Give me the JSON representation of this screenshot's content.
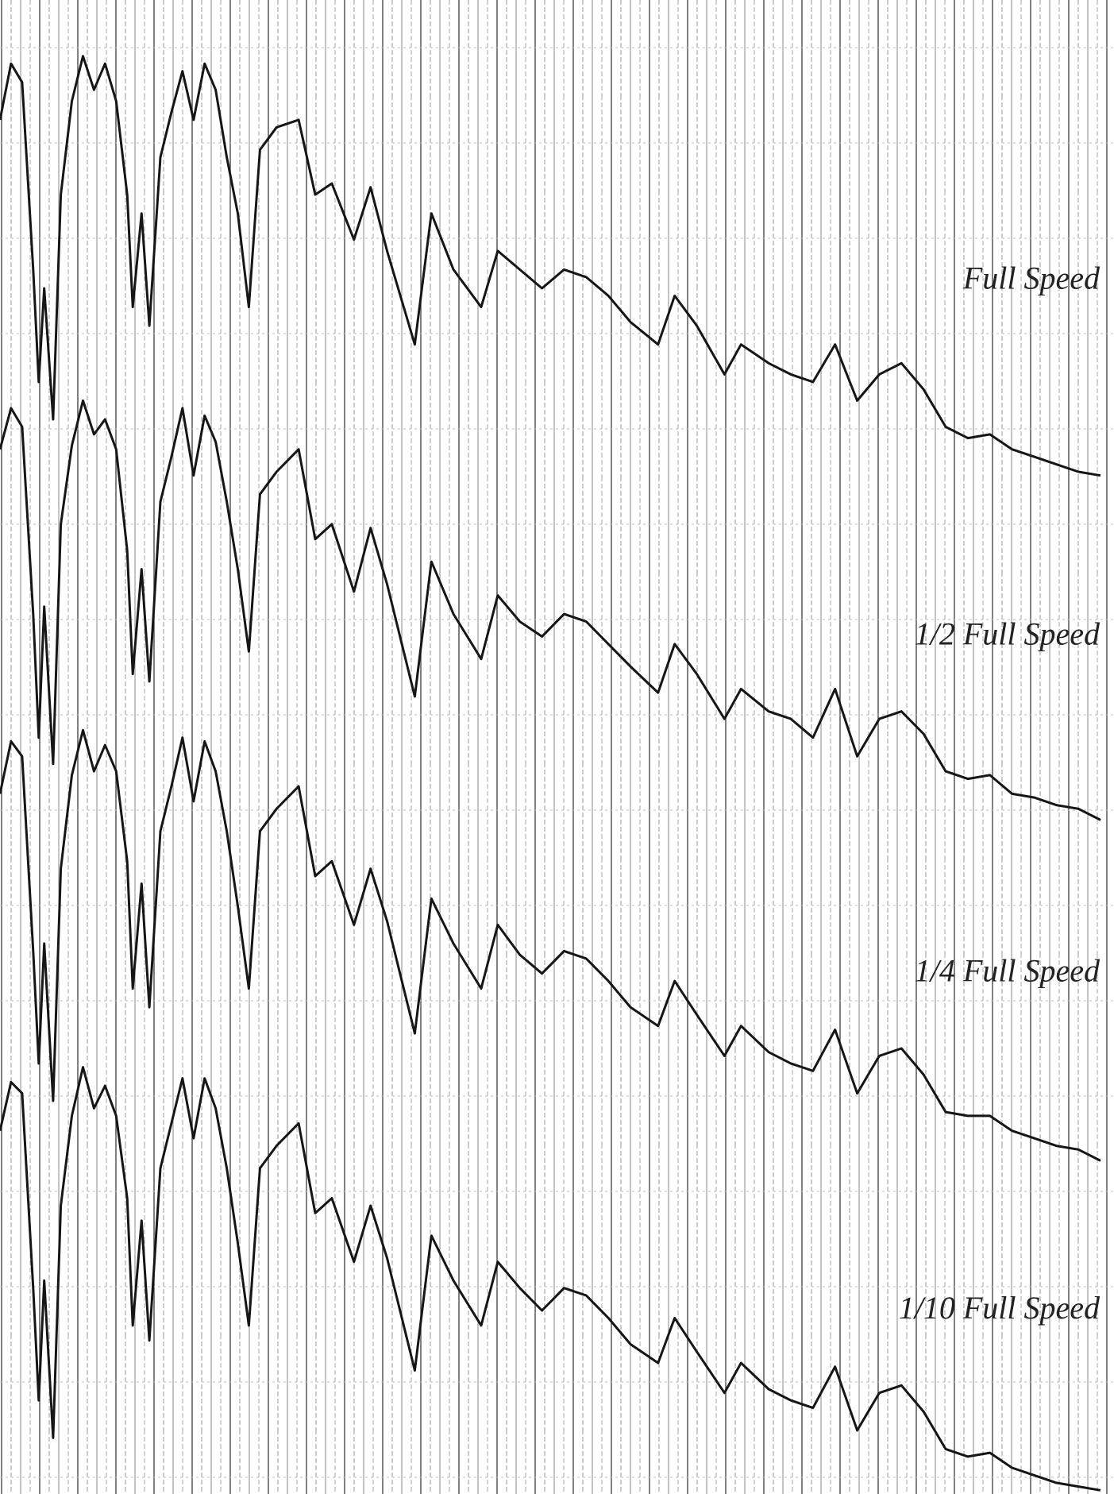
{
  "chart_data": {
    "type": "line",
    "x": [
      0,
      1,
      2,
      3,
      3.5,
      4,
      4.8,
      5.5,
      6.5,
      7.5,
      8.5,
      9.5,
      10.5,
      11.5,
      12,
      12.8,
      13.5,
      14.5,
      15.5,
      16.5,
      17.5,
      18.5,
      19.5,
      20.5,
      21.5,
      22.5,
      23.5,
      25,
      27,
      28.5,
      30,
      32,
      33.5,
      35,
      37.5,
      39,
      41,
      43.5,
      45,
      47,
      49,
      51,
      53,
      55,
      57,
      59.5,
      61,
      63,
      65.5,
      67,
      69.5,
      71.5,
      73.5,
      75.5,
      77.5,
      79.5,
      81.5,
      83.5,
      85.5,
      87.5,
      89.5,
      91.5,
      93.5,
      95.5,
      97.5,
      99.5
    ],
    "xlim": [
      0,
      100
    ],
    "ylim": [
      3,
      402
    ],
    "series": [
      {
        "name": "Full Speed",
        "color": "#161616",
        "values": [
          370,
          385,
          380,
          330,
          300,
          325,
          290,
          350,
          375,
          387,
          378,
          385,
          375,
          350,
          320,
          345,
          315,
          360,
          372,
          383,
          370,
          385,
          378,
          360,
          345,
          320,
          362,
          368,
          370,
          350,
          353,
          338,
          352,
          335,
          310,
          345,
          330,
          320,
          335,
          330,
          325,
          330,
          328,
          323,
          316,
          310,
          323,
          315,
          302,
          310,
          305,
          302,
          300,
          310,
          295,
          302,
          305,
          298,
          288,
          285,
          286,
          282,
          280,
          278,
          276,
          275
        ]
      },
      {
        "name": "1/2 Full Speed",
        "color": "#161616",
        "values": [
          282,
          293,
          288,
          238,
          205,
          240,
          198,
          262,
          283,
          295,
          286,
          290,
          282,
          255,
          222,
          250,
          220,
          268,
          280,
          293,
          275,
          291,
          284,
          268,
          250,
          228,
          270,
          276,
          282,
          258,
          262,
          244,
          261,
          246,
          216,
          252,
          238,
          226,
          243,
          236,
          232,
          238,
          236,
          230,
          224,
          217,
          230,
          222,
          210,
          218,
          212,
          210,
          205,
          218,
          200,
          210,
          212,
          206,
          196,
          194,
          195,
          190,
          189,
          187,
          186,
          183
        ]
      },
      {
        "name": "1/4 Full Speed",
        "color": "#161616",
        "values": [
          190,
          204,
          200,
          148,
          118,
          150,
          108,
          170,
          195,
          207,
          196,
          203,
          196,
          172,
          138,
          166,
          133,
          180,
          192,
          205,
          188,
          204,
          196,
          180,
          160,
          138,
          180,
          186,
          192,
          168,
          172,
          155,
          170,
          156,
          126,
          162,
          150,
          138,
          155,
          147,
          142,
          148,
          146,
          140,
          133,
          128,
          140,
          131,
          120,
          128,
          121,
          118,
          116,
          127,
          110,
          120,
          122,
          115,
          105,
          104,
          104,
          100,
          98,
          96,
          95,
          92
        ]
      },
      {
        "name": "1/10 Full Speed",
        "color": "#161616",
        "values": [
          100,
          113,
          110,
          58,
          28,
          60,
          18,
          80,
          104,
          117,
          106,
          112,
          104,
          82,
          48,
          76,
          44,
          90,
          102,
          114,
          98,
          114,
          106,
          90,
          70,
          48,
          90,
          96,
          102,
          78,
          82,
          65,
          80,
          66,
          36,
          72,
          60,
          48,
          65,
          58,
          52,
          58,
          56,
          50,
          43,
          38,
          50,
          41,
          30,
          38,
          31,
          28,
          26,
          37,
          20,
          30,
          32,
          25,
          15,
          13,
          14,
          10,
          8,
          6,
          5,
          4
        ]
      }
    ]
  }
}
